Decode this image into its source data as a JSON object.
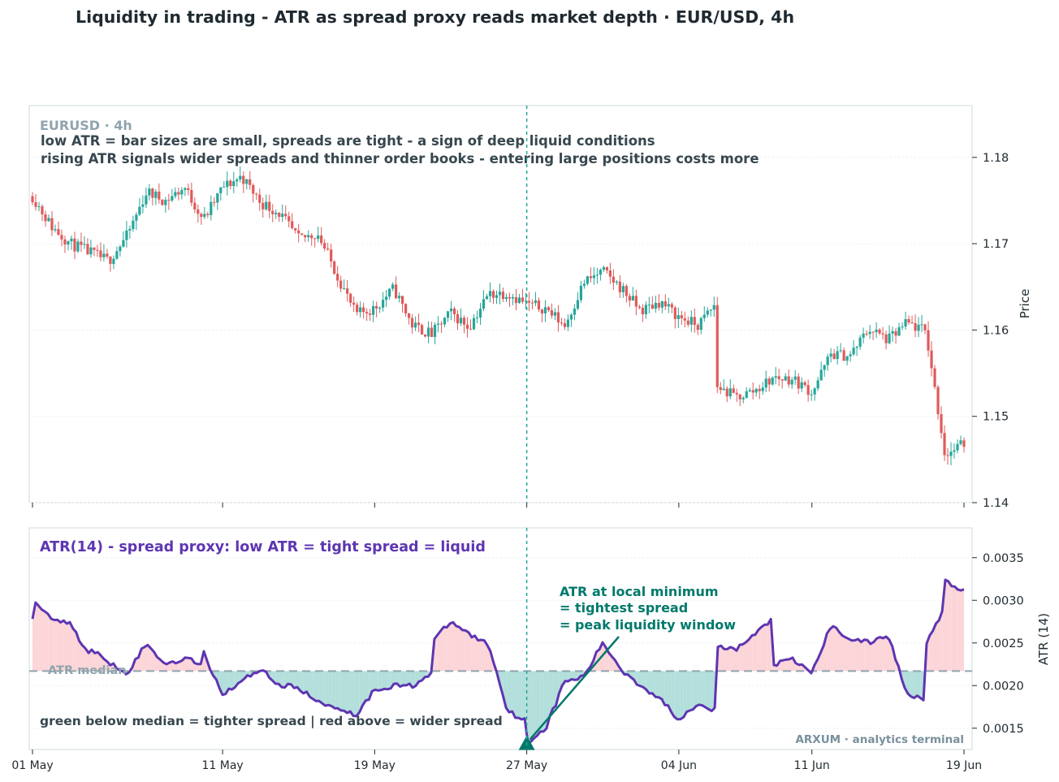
{
  "title": "Liquidity in trading - ATR as spread proxy reads market depth  ·  EUR/USD, 4h",
  "colors": {
    "up": "#26a69a",
    "down": "#e05a5a",
    "atr_line": "#5e35b1",
    "fill_below": "#b2dfdb",
    "fill_above": "#fbd5d8",
    "median": "#90a4ae",
    "annotation": "#00796b",
    "text_dark": "#37474f",
    "text_muted": "#90a4ae"
  },
  "price_panel": {
    "tag": "EURUSD · 4h",
    "note_1": "low ATR = bar sizes are small, spreads are tight - a sign of deep liquid conditions",
    "note_2": "rising ATR signals wider spreads and thinner order books - entering large positions costs more",
    "ylabel": "Price",
    "yticks": [
      "1.14",
      "1.15",
      "1.16",
      "1.17",
      "1.18"
    ]
  },
  "atr_panel": {
    "title": "ATR(14) - spread proxy: low ATR = tight spread = liquid",
    "median_label": "ATR median",
    "legend_note": "green below median = tighter spread  |  red above = wider spread",
    "annotation_line_1": "ATR at local minimum",
    "annotation_line_2": "= tightest spread",
    "annotation_line_3": "= peak liquidity window",
    "watermark": "ARXUM · analytics terminal",
    "ylabel": "ATR (14)",
    "yticks": [
      "0.0015",
      "0.0020",
      "0.0025",
      "0.0030",
      "0.0035"
    ]
  },
  "x_ticks": [
    "01 May",
    "11 May",
    "19 May",
    "27 May",
    "04 Jun",
    "11 Jun",
    "19 Jun"
  ],
  "chart_data": [
    {
      "type": "candlestick",
      "x_range": [
        "2024-05-01",
        "2024-06-19"
      ],
      "ylim": [
        1.14,
        1.186
      ],
      "ylabel": "Price",
      "grid": true,
      "marker_date": "2024-05-27",
      "close_anchors": [
        {
          "x": "2024-05-01",
          "y": 1.1755
        },
        {
          "x": "2024-05-02",
          "y": 1.172
        },
        {
          "x": "2024-05-03",
          "y": 1.17
        },
        {
          "x": "2024-05-05",
          "y": 1.168
        },
        {
          "x": "2024-05-06",
          "y": 1.171
        },
        {
          "x": "2024-05-07",
          "y": 1.176
        },
        {
          "x": "2024-05-08",
          "y": 1.175
        },
        {
          "x": "2024-05-09",
          "y": 1.1765
        },
        {
          "x": "2024-05-10",
          "y": 1.1728
        },
        {
          "x": "2024-05-11",
          "y": 1.1765
        },
        {
          "x": "2024-05-12",
          "y": 1.1778
        },
        {
          "x": "2024-05-13",
          "y": 1.1748
        },
        {
          "x": "2024-05-14",
          "y": 1.1735
        },
        {
          "x": "2024-05-15",
          "y": 1.1705
        },
        {
          "x": "2024-05-16",
          "y": 1.1712
        },
        {
          "x": "2024-05-17",
          "y": 1.1665
        },
        {
          "x": "2024-05-18",
          "y": 1.1618
        },
        {
          "x": "2024-05-19",
          "y": 1.1625
        },
        {
          "x": "2024-05-20",
          "y": 1.1648
        },
        {
          "x": "2024-05-21",
          "y": 1.1605
        },
        {
          "x": "2024-05-22",
          "y": 1.1595
        },
        {
          "x": "2024-05-23",
          "y": 1.162
        },
        {
          "x": "2024-05-24",
          "y": 1.1603
        },
        {
          "x": "2024-05-24",
          "y": 1.1605
        },
        {
          "x": "2024-05-25",
          "y": 1.1642
        },
        {
          "x": "2024-05-26",
          "y": 1.1643
        },
        {
          "x": "2024-05-27",
          "y": 1.163
        },
        {
          "x": "2024-05-28",
          "y": 1.1625
        },
        {
          "x": "2024-05-29",
          "y": 1.1605
        },
        {
          "x": "2024-05-30",
          "y": 1.1655
        },
        {
          "x": "2024-05-31",
          "y": 1.1668
        },
        {
          "x": "2024-06-01",
          "y": 1.1648
        },
        {
          "x": "2024-06-02",
          "y": 1.1622
        },
        {
          "x": "2024-06-03",
          "y": 1.1633
        },
        {
          "x": "2024-06-04",
          "y": 1.1615
        },
        {
          "x": "2024-06-05",
          "y": 1.1605
        },
        {
          "x": "2024-06-06",
          "y": 1.1632
        },
        {
          "x": "2024-06-06",
          "y": 1.1535
        },
        {
          "x": "2024-06-07",
          "y": 1.1522
        },
        {
          "x": "2024-06-08",
          "y": 1.153
        },
        {
          "x": "2024-06-09",
          "y": 1.1545
        },
        {
          "x": "2024-06-10",
          "y": 1.1543
        },
        {
          "x": "2024-06-11",
          "y": 1.1528
        },
        {
          "x": "2024-06-12",
          "y": 1.1572
        },
        {
          "x": "2024-06-13",
          "y": 1.157
        },
        {
          "x": "2024-06-14",
          "y": 1.1602
        },
        {
          "x": "2024-06-15",
          "y": 1.1588
        },
        {
          "x": "2024-06-16",
          "y": 1.1608
        },
        {
          "x": "2024-06-17",
          "y": 1.1598
        },
        {
          "x": "2024-06-18",
          "y": 1.1455
        },
        {
          "x": "2024-06-19",
          "y": 1.1468
        }
      ]
    },
    {
      "type": "area",
      "series": [
        {
          "name": "ATR(14) - spread proxy: low ATR = tight spread = liquid"
        }
      ],
      "ylim": [
        0.00125,
        0.00385
      ],
      "ylabel": "ATR (14)",
      "median": 0.00217,
      "grid": true,
      "annotation": {
        "x": "2024-05-27",
        "y": 0.00133
      },
      "points": [
        {
          "x": "2024-05-01",
          "y": 0.0028
        },
        {
          "x": "2024-05-01",
          "y": 0.00298
        },
        {
          "x": "2024-05-02",
          "y": 0.0028
        },
        {
          "x": "2024-05-03",
          "y": 0.00272
        },
        {
          "x": "2024-05-04",
          "y": 0.00235
        },
        {
          "x": "2024-05-04",
          "y": 0.00243
        },
        {
          "x": "2024-05-05",
          "y": 0.00228
        },
        {
          "x": "2024-05-06",
          "y": 0.00215
        },
        {
          "x": "2024-05-07",
          "y": 0.0025
        },
        {
          "x": "2024-05-07",
          "y": 0.00248
        },
        {
          "x": "2024-05-08",
          "y": 0.00225
        },
        {
          "x": "2024-05-09",
          "y": 0.00232
        },
        {
          "x": "2024-05-10",
          "y": 0.00225
        },
        {
          "x": "2024-05-10",
          "y": 0.00238
        },
        {
          "x": "2024-05-11",
          "y": 0.0019
        },
        {
          "x": "2024-05-12",
          "y": 0.00205
        },
        {
          "x": "2024-05-13",
          "y": 0.0022
        },
        {
          "x": "2024-05-14",
          "y": 0.002
        },
        {
          "x": "2024-05-15",
          "y": 0.00198
        },
        {
          "x": "2024-05-16",
          "y": 0.0018
        },
        {
          "x": "2024-05-17",
          "y": 0.00175
        },
        {
          "x": "2024-05-18",
          "y": 0.00165
        },
        {
          "x": "2024-05-19",
          "y": 0.00195
        },
        {
          "x": "2024-05-20",
          "y": 0.002
        },
        {
          "x": "2024-05-21",
          "y": 0.002
        },
        {
          "x": "2024-05-22",
          "y": 0.00215
        },
        {
          "x": "2024-05-22",
          "y": 0.0025
        },
        {
          "x": "2024-05-23",
          "y": 0.00275
        },
        {
          "x": "2024-05-24",
          "y": 0.0026
        },
        {
          "x": "2024-05-25",
          "y": 0.00248
        },
        {
          "x": "2024-05-26",
          "y": 0.0017
        },
        {
          "x": "2024-05-27",
          "y": 0.00158
        },
        {
          "x": "2024-05-27",
          "y": 0.00133
        },
        {
          "x": "2024-05-28",
          "y": 0.0015
        },
        {
          "x": "2024-05-29",
          "y": 0.00205
        },
        {
          "x": "2024-05-30",
          "y": 0.0021
        },
        {
          "x": "2024-05-31",
          "y": 0.0025
        },
        {
          "x": "2024-06-01",
          "y": 0.00218
        },
        {
          "x": "2024-06-02",
          "y": 0.002
        },
        {
          "x": "2024-06-03",
          "y": 0.00185
        },
        {
          "x": "2024-06-04",
          "y": 0.0016
        },
        {
          "x": "2024-06-05",
          "y": 0.0018
        },
        {
          "x": "2024-06-06",
          "y": 0.0017
        },
        {
          "x": "2024-06-06",
          "y": 0.00245
        },
        {
          "x": "2024-06-07",
          "y": 0.00242
        },
        {
          "x": "2024-06-08",
          "y": 0.0026
        },
        {
          "x": "2024-06-09",
          "y": 0.0028
        },
        {
          "x": "2024-06-09",
          "y": 0.00225
        },
        {
          "x": "2024-06-10",
          "y": 0.0023
        },
        {
          "x": "2024-06-11",
          "y": 0.00215
        },
        {
          "x": "2024-06-12",
          "y": 0.0027
        },
        {
          "x": "2024-06-13",
          "y": 0.00255
        },
        {
          "x": "2024-06-14",
          "y": 0.0025
        },
        {
          "x": "2024-06-15",
          "y": 0.0026
        },
        {
          "x": "2024-06-16",
          "y": 0.0019
        },
        {
          "x": "2024-06-17",
          "y": 0.00185
        },
        {
          "x": "2024-06-17",
          "y": 0.0025
        },
        {
          "x": "2024-06-18",
          "y": 0.0029
        },
        {
          "x": "2024-06-18",
          "y": 0.00322
        },
        {
          "x": "2024-06-19",
          "y": 0.0031
        }
      ]
    }
  ]
}
